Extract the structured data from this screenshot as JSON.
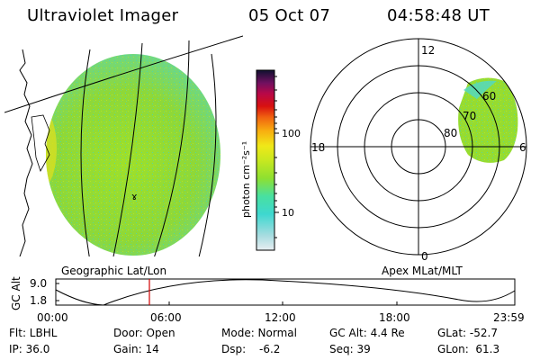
{
  "header": {
    "title": "Ultraviolet Imager",
    "date": "05 Oct 07",
    "time": "04:58:48 UT"
  },
  "colorbar": {
    "label": "photon cm⁻²s⁻¹",
    "ticks": [
      "100",
      "10"
    ]
  },
  "polar_plot": {
    "clock_labels": [
      "12",
      "18",
      "6",
      "0"
    ],
    "lat_labels": [
      "60",
      "70",
      "80"
    ]
  },
  "panel_labels": {
    "left": "Geographic Lat/Lon",
    "right": "Apex MLat/MLT"
  },
  "altitude_plot": {
    "ylabel": "GC Alt",
    "yticks": [
      "9.0",
      "1.8"
    ],
    "xticks": [
      "00:00",
      "06:00",
      "12:00",
      "18:00",
      "23:59"
    ],
    "current_time_marker": "05:00"
  },
  "status": {
    "flt": "Flt: LBHL",
    "ip": "IP: 36.0",
    "door": "Door: Open",
    "gain": "Gain: 14",
    "mode": "Mode: Normal",
    "dsp": "Dsp:",
    "dsp_value": "-6.2",
    "gc_alt": "GC Alt: 4.4 Re",
    "seq": "Seq: 39",
    "glat": "GLat: -52.7",
    "glon": "GLon:  61.3"
  },
  "colors": {
    "aurora_green": "#8fdc2a",
    "aurora_cyan": "#40d8c8",
    "marker_red": "#d00000"
  }
}
